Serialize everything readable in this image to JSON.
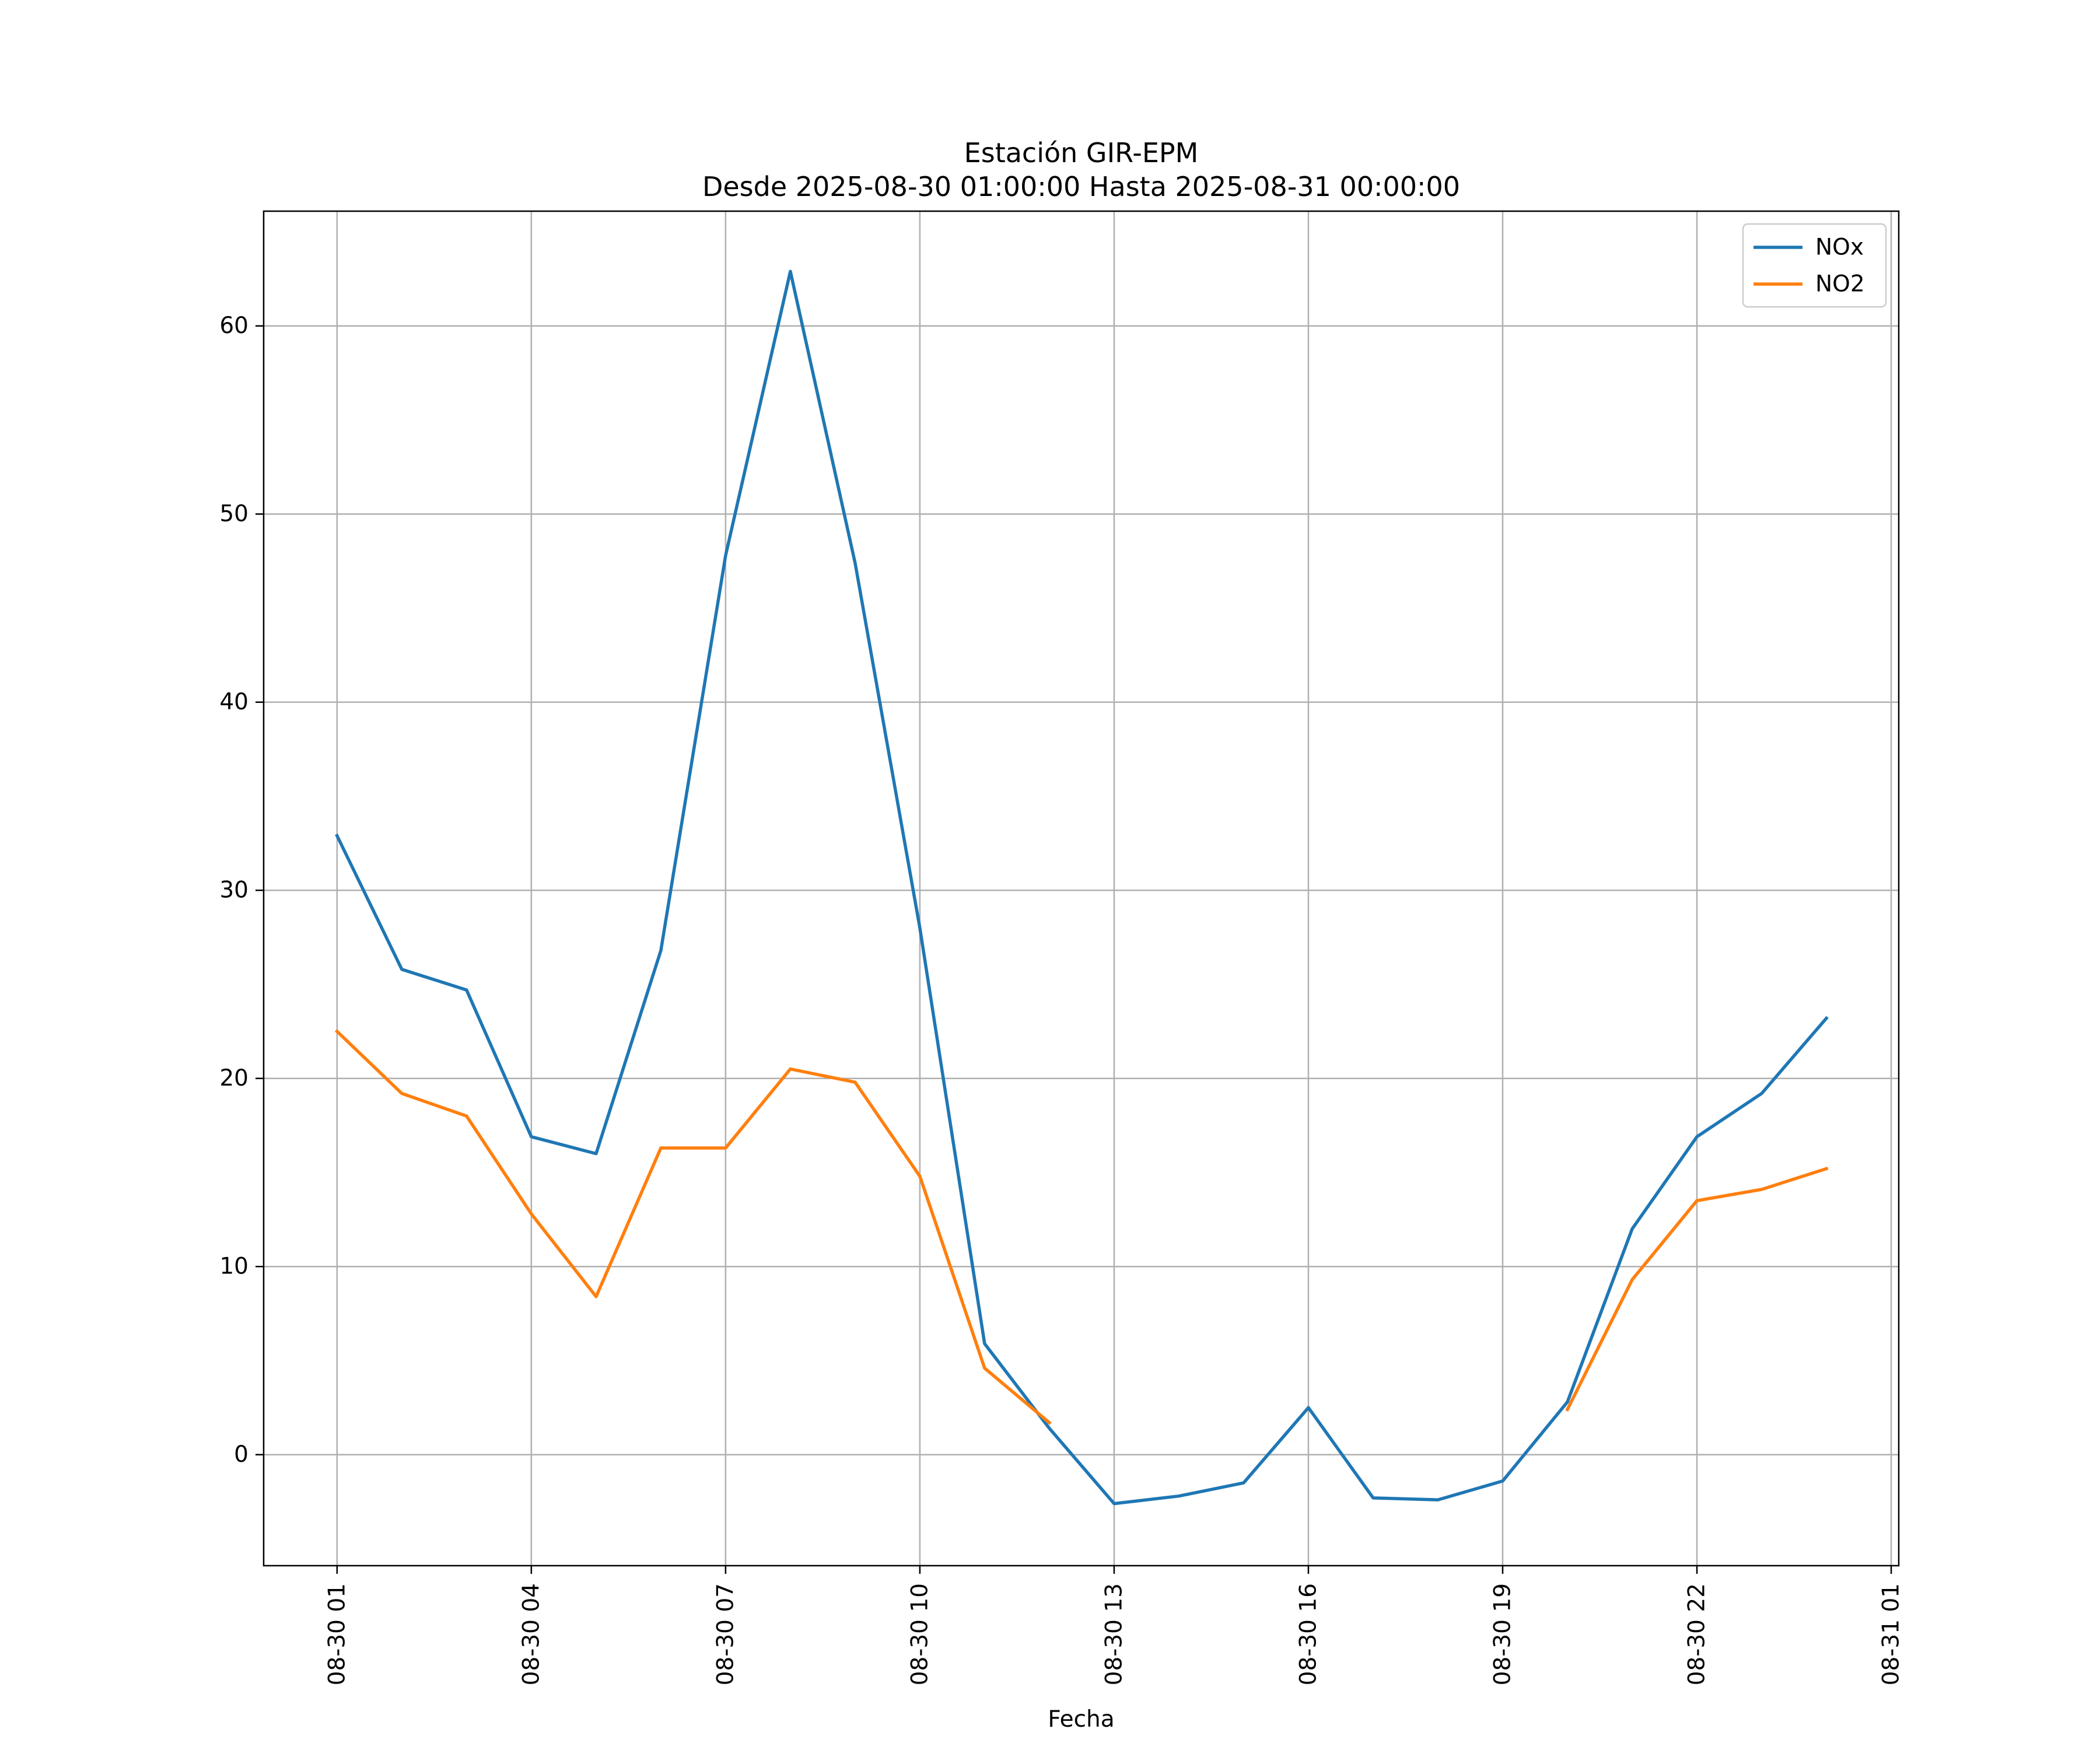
{
  "chart_data": {
    "type": "line",
    "title": "Estación GIR-EPM",
    "subtitle": "Desde 2025-08-30 01:00:00 Hasta 2025-08-31 00:00:00",
    "xlabel": "Fecha",
    "ylabel": "",
    "x": [
      "2025-08-30 01:00",
      "2025-08-30 02:00",
      "2025-08-30 03:00",
      "2025-08-30 04:00",
      "2025-08-30 05:00",
      "2025-08-30 06:00",
      "2025-08-30 07:00",
      "2025-08-30 08:00",
      "2025-08-30 09:00",
      "2025-08-30 10:00",
      "2025-08-30 11:00",
      "2025-08-30 12:00",
      "2025-08-30 13:00",
      "2025-08-30 14:00",
      "2025-08-30 15:00",
      "2025-08-30 16:00",
      "2025-08-30 17:00",
      "2025-08-30 18:00",
      "2025-08-30 19:00",
      "2025-08-30 20:00",
      "2025-08-30 21:00",
      "2025-08-30 22:00",
      "2025-08-30 23:00",
      "2025-08-31 00:00"
    ],
    "series": [
      {
        "name": "NOx",
        "color": "#1f77b4",
        "values": [
          32.9,
          25.8,
          24.7,
          16.9,
          16.0,
          26.8,
          47.8,
          62.9,
          47.4,
          28.0,
          5.9,
          1.4,
          -2.6,
          -2.2,
          -1.5,
          2.5,
          -2.3,
          -2.4,
          -1.4,
          2.8,
          12.0,
          16.9,
          19.2,
          23.2
        ]
      },
      {
        "name": "NO2",
        "color": "#ff7f0e",
        "values": [
          22.5,
          19.2,
          18.0,
          12.8,
          8.4,
          16.3,
          16.3,
          20.5,
          19.8,
          14.8,
          4.6,
          1.7,
          null,
          null,
          null,
          null,
          null,
          null,
          null,
          2.4,
          9.3,
          13.5,
          14.1,
          15.2
        ]
      }
    ],
    "x_ticks": [
      "08-30 01",
      "08-30 04",
      "08-30 07",
      "08-30 10",
      "08-30 13",
      "08-30 16",
      "08-30 19",
      "08-30 22",
      "08-31 01"
    ],
    "x_range": [
      "2025-08-29 23:52",
      "2025-08-31 01:07"
    ],
    "y_ticks": [
      0,
      10,
      20,
      30,
      40,
      50,
      60
    ],
    "ylim": [
      -5.9,
      66.1
    ],
    "grid": true,
    "legend_position": "top-right"
  }
}
